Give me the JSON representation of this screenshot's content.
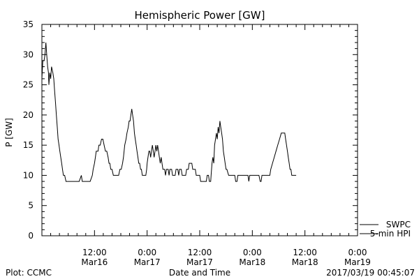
{
  "chart_data": {
    "type": "line",
    "title": "Hemispheric Power [GW]",
    "ylabel": "P [GW]",
    "xlabel": "Date and Time",
    "ylim": [
      0,
      35
    ],
    "xlim_hours": [
      0,
      72
    ],
    "x_unit": "hours since 2017-03-16 00:00",
    "y_ticks": [
      "0",
      "5",
      "10",
      "15",
      "20",
      "25",
      "30",
      "35"
    ],
    "x_ticks": [
      {
        "t": 12,
        "time": "12:00",
        "date": "Mar16"
      },
      {
        "t": 24,
        "time": "0:00",
        "date": "Mar17"
      },
      {
        "t": 36,
        "time": "12:00",
        "date": "Mar17"
      },
      {
        "t": 48,
        "time": "0:00",
        "date": "Mar18"
      },
      {
        "t": 60,
        "time": "12:00",
        "date": "Mar18"
      },
      {
        "t": 72,
        "time": "0:00",
        "date": "Mar19"
      }
    ],
    "grid": false,
    "legend_position": "bottom-right",
    "series": [
      {
        "name": "SWPC",
        "color": "#000000",
        "points": [
          [
            0.0,
            26
          ],
          [
            0.2,
            29
          ],
          [
            0.5,
            29
          ],
          [
            0.7,
            30
          ],
          [
            0.9,
            32
          ],
          [
            1.1,
            30
          ],
          [
            1.3,
            28
          ],
          [
            1.5,
            27
          ],
          [
            1.6,
            25
          ],
          [
            1.8,
            27
          ],
          [
            2.0,
            26
          ],
          [
            2.2,
            28
          ],
          [
            2.5,
            27
          ],
          [
            2.7,
            26
          ],
          [
            2.9,
            24
          ],
          [
            3.1,
            22
          ],
          [
            3.3,
            20
          ],
          [
            3.5,
            18
          ],
          [
            3.7,
            16
          ],
          [
            3.9,
            15
          ],
          [
            4.1,
            14
          ],
          [
            4.3,
            13
          ],
          [
            4.5,
            12
          ],
          [
            4.7,
            11
          ],
          [
            4.9,
            10
          ],
          [
            5.2,
            10
          ],
          [
            5.5,
            9
          ],
          [
            6.0,
            9
          ],
          [
            7.0,
            9
          ],
          [
            8.5,
            9
          ],
          [
            9.0,
            10
          ],
          [
            9.2,
            9
          ],
          [
            10.0,
            9
          ],
          [
            11.0,
            9
          ],
          [
            11.5,
            10
          ],
          [
            11.7,
            11
          ],
          [
            12.0,
            12
          ],
          [
            12.2,
            13
          ],
          [
            12.4,
            14
          ],
          [
            12.8,
            14
          ],
          [
            13.0,
            15
          ],
          [
            13.3,
            15
          ],
          [
            13.6,
            16
          ],
          [
            13.9,
            16
          ],
          [
            14.2,
            15
          ],
          [
            14.5,
            14
          ],
          [
            14.8,
            14
          ],
          [
            15.1,
            13
          ],
          [
            15.3,
            12
          ],
          [
            15.5,
            12
          ],
          [
            15.7,
            11
          ],
          [
            16.0,
            11
          ],
          [
            16.3,
            10
          ],
          [
            17.5,
            10
          ],
          [
            17.8,
            11
          ],
          [
            18.1,
            11
          ],
          [
            18.4,
            12
          ],
          [
            18.6,
            13
          ],
          [
            18.9,
            15
          ],
          [
            19.2,
            16
          ],
          [
            19.4,
            17
          ],
          [
            19.7,
            18
          ],
          [
            19.9,
            19
          ],
          [
            20.1,
            19
          ],
          [
            20.3,
            20
          ],
          [
            20.5,
            21
          ],
          [
            20.7,
            20
          ],
          [
            20.9,
            19
          ],
          [
            21.1,
            17
          ],
          [
            21.3,
            16
          ],
          [
            21.5,
            15
          ],
          [
            21.7,
            14
          ],
          [
            21.9,
            13
          ],
          [
            22.1,
            12
          ],
          [
            22.3,
            12
          ],
          [
            22.5,
            11
          ],
          [
            22.7,
            11
          ],
          [
            22.9,
            10
          ],
          [
            23.7,
            10
          ],
          [
            23.9,
            11
          ],
          [
            24.0,
            12
          ],
          [
            24.2,
            13
          ],
          [
            24.4,
            14
          ],
          [
            24.6,
            14
          ],
          [
            24.8,
            13
          ],
          [
            25.0,
            14
          ],
          [
            25.2,
            15
          ],
          [
            25.4,
            14
          ],
          [
            25.6,
            13
          ],
          [
            25.8,
            14
          ],
          [
            26.0,
            15
          ],
          [
            26.2,
            14
          ],
          [
            26.4,
            15
          ],
          [
            26.6,
            14
          ],
          [
            26.8,
            13
          ],
          [
            27.0,
            12
          ],
          [
            27.2,
            13
          ],
          [
            27.4,
            12
          ],
          [
            27.6,
            11
          ],
          [
            28.0,
            11
          ],
          [
            28.2,
            10
          ],
          [
            28.4,
            11
          ],
          [
            28.8,
            11
          ],
          [
            29.0,
            10
          ],
          [
            29.2,
            11
          ],
          [
            29.6,
            11
          ],
          [
            29.8,
            10
          ],
          [
            30.4,
            10
          ],
          [
            30.6,
            11
          ],
          [
            31.0,
            11
          ],
          [
            31.2,
            10
          ],
          [
            31.4,
            11
          ],
          [
            31.8,
            11
          ],
          [
            32.0,
            10
          ],
          [
            32.8,
            10
          ],
          [
            33.0,
            11
          ],
          [
            33.4,
            11
          ],
          [
            33.6,
            12
          ],
          [
            34.2,
            12
          ],
          [
            34.4,
            11
          ],
          [
            35.0,
            11
          ],
          [
            35.2,
            10
          ],
          [
            35.6,
            10
          ],
          [
            36.0,
            10
          ],
          [
            36.2,
            9
          ],
          [
            37.5,
            9
          ],
          [
            37.7,
            10
          ],
          [
            38.0,
            10
          ],
          [
            38.2,
            9
          ],
          [
            38.5,
            9
          ],
          [
            38.6,
            10
          ],
          [
            38.8,
            12
          ],
          [
            39.0,
            13
          ],
          [
            39.2,
            12
          ],
          [
            39.4,
            15
          ],
          [
            39.6,
            16
          ],
          [
            39.8,
            17
          ],
          [
            40.0,
            16
          ],
          [
            40.2,
            18
          ],
          [
            40.4,
            17
          ],
          [
            40.6,
            19
          ],
          [
            40.8,
            18
          ],
          [
            41.0,
            17
          ],
          [
            41.2,
            16
          ],
          [
            41.4,
            14
          ],
          [
            41.6,
            13
          ],
          [
            41.8,
            12
          ],
          [
            42.0,
            11
          ],
          [
            42.2,
            11
          ],
          [
            42.6,
            10
          ],
          [
            44.0,
            10
          ],
          [
            44.2,
            9
          ],
          [
            44.5,
            9
          ],
          [
            44.7,
            10
          ],
          [
            47.0,
            10
          ],
          [
            47.2,
            9
          ],
          [
            47.4,
            10
          ],
          [
            49.5,
            10
          ],
          [
            49.8,
            9
          ],
          [
            50.0,
            9
          ],
          [
            50.2,
            10
          ],
          [
            52.0,
            10
          ],
          [
            52.2,
            11
          ],
          [
            52.6,
            12
          ],
          [
            53.0,
            13
          ],
          [
            53.4,
            14
          ],
          [
            53.8,
            15
          ],
          [
            54.2,
            16
          ],
          [
            54.6,
            17
          ],
          [
            55.4,
            17
          ],
          [
            55.6,
            16
          ],
          [
            55.8,
            15
          ],
          [
            56.0,
            14
          ],
          [
            56.2,
            13
          ],
          [
            56.4,
            12
          ],
          [
            56.6,
            11
          ],
          [
            56.8,
            11
          ],
          [
            57.0,
            10
          ],
          [
            58.0,
            10
          ]
        ]
      }
    ]
  },
  "legend": {
    "items": [
      {
        "label": "SWPC",
        "color": "#000000"
      },
      {
        "label": "5-min HPI",
        "color": "#000000"
      }
    ]
  },
  "footer": {
    "left": "Plot: CCMC",
    "center": "Date and Time",
    "right": "2017/03/19 00:45:07"
  }
}
